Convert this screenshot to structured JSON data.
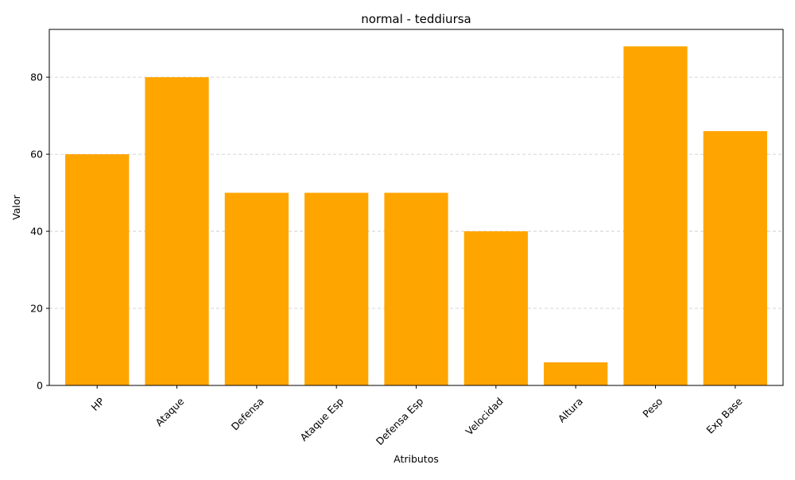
{
  "chart_data": {
    "type": "bar",
    "title": "normal - teddiursa",
    "xlabel": "Atributos",
    "ylabel": "Valor",
    "categories": [
      "HP",
      "Ataque",
      "Defensa",
      "Ataque Esp",
      "Defensa Esp",
      "Velocidad",
      "Altura",
      "Peso",
      "Exp Base"
    ],
    "values": [
      60,
      80,
      50,
      50,
      50,
      40,
      6,
      88,
      66
    ],
    "ylim": [
      0,
      92.4
    ],
    "yticks": [
      0,
      20,
      40,
      60,
      80
    ],
    "grid": "y-dashed",
    "bar_color": "#FFA500",
    "x_tick_rotation": 45
  }
}
